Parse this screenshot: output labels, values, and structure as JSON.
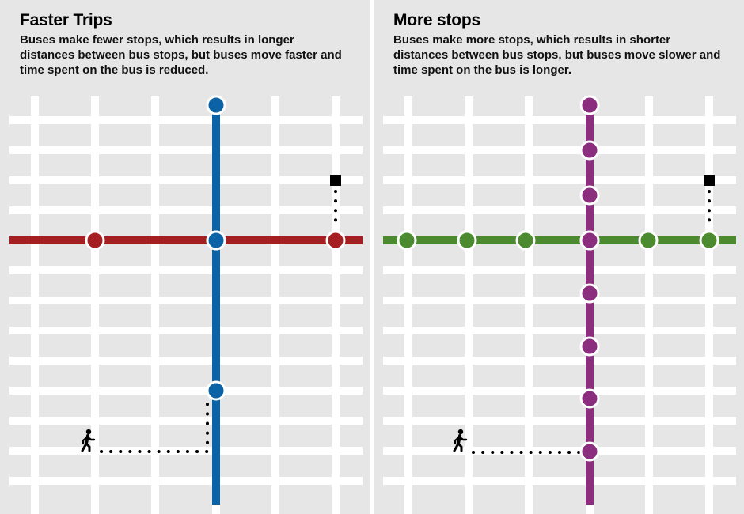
{
  "panels": [
    {
      "title": "Faster Trips",
      "description": "Buses make fewer stops, which results in longer distances between bus stops, but buses move faster and time spent on the bus is reduced.",
      "horizontal_route_color": "#a51e22",
      "vertical_route_color": "#0b63a5",
      "pedestrian_icon": "walking-person-icon",
      "destination_icon": "square-destination-icon"
    },
    {
      "title": "More stops",
      "description": "Buses make more stops, which results in shorter distances between bus stops, but buses move slower and time spent on the bus is longer.",
      "horizontal_route_color": "#4b8a2e",
      "vertical_route_color": "#8b2e7d",
      "pedestrian_icon": "walking-person-icon",
      "destination_icon": "square-destination-icon"
    }
  ],
  "colors": {
    "background": "#e6e6e6",
    "street": "#ffffff",
    "walking_path": "#000000"
  }
}
